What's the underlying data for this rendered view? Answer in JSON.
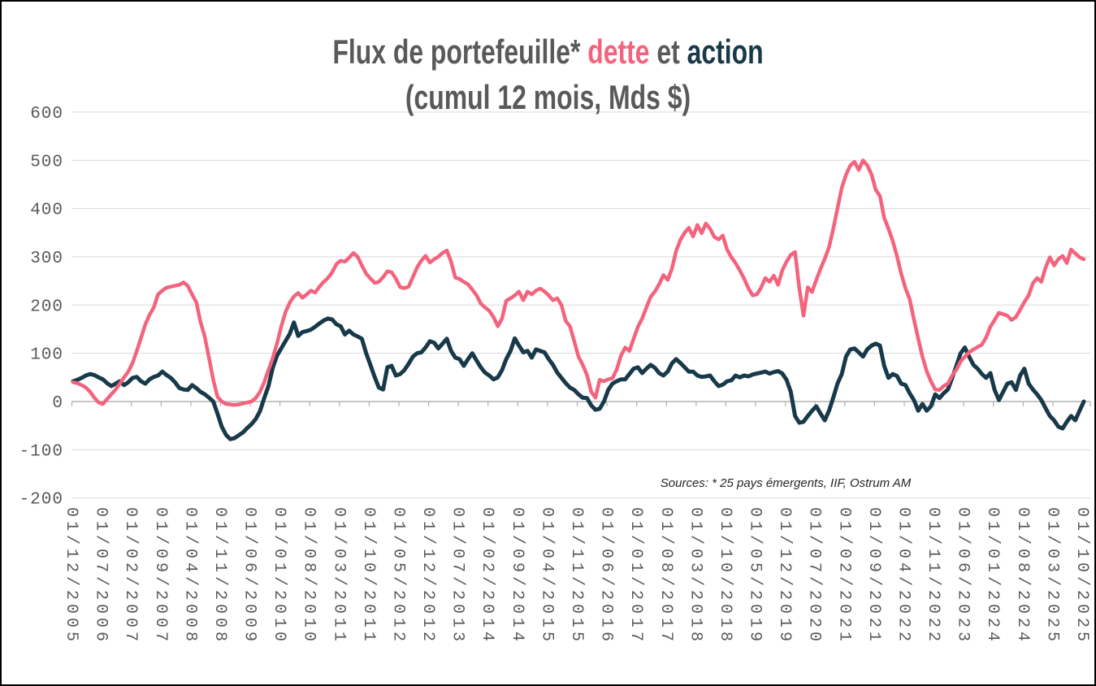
{
  "chart_data": {
    "type": "line",
    "title_segments": [
      {
        "text": "Flux de portefeuille* ",
        "color": "#595959"
      },
      {
        "text": "dette",
        "color": "#F4637D"
      },
      {
        "text": " et ",
        "color": "#595959"
      },
      {
        "text": "action",
        "color": "#17394A"
      }
    ],
    "subtitle": "(cumul 12 mois, Mds $)",
    "source_note": "Sources: * 25 pays émergents, IIF, Ostrum AM",
    "grid": true,
    "legend_position": "none",
    "ylim": [
      -200,
      600
    ],
    "y_ticks": [
      600,
      500,
      400,
      300,
      200,
      100,
      0,
      -100,
      -200
    ],
    "x_unit": "monthly from 01/12/2005 to 01/10/2025",
    "x_tick_interval_months": 7,
    "x_tick_labels": [
      "01/12/2005",
      "01/07/2006",
      "01/02/2007",
      "01/09/2007",
      "01/04/2008",
      "01/11/2008",
      "01/06/2009",
      "01/01/2010",
      "01/08/2010",
      "01/03/2011",
      "01/10/2011",
      "01/05/2012",
      "01/12/2012",
      "01/07/2013",
      "01/02/2014",
      "01/09/2014",
      "01/04/2015",
      "01/11/2015",
      "01/06/2016",
      "01/01/2017",
      "01/08/2017",
      "01/03/2018",
      "01/10/2018",
      "01/05/2019",
      "01/12/2019",
      "01/07/2020",
      "01/02/2021",
      "01/09/2021",
      "01/04/2022",
      "01/11/2022",
      "01/06/2023",
      "01/01/2024",
      "01/08/2024",
      "01/03/2025",
      "01/10/2025"
    ],
    "series": [
      {
        "name": "dette",
        "color": "#F4637D",
        "stroke_width": 4.5,
        "values": [
          40,
          38,
          34,
          29,
          20,
          8,
          -2,
          -5,
          5,
          15,
          25,
          37,
          50,
          62,
          80,
          105,
          132,
          160,
          180,
          195,
          222,
          230,
          236,
          238,
          240,
          242,
          247,
          240,
          222,
          206,
          165,
          135,
          90,
          45,
          10,
          0,
          -5,
          -6,
          -7,
          -6,
          -4,
          -2,
          0,
          7,
          20,
          40,
          65,
          90,
          120,
          155,
          185,
          205,
          218,
          225,
          215,
          222,
          230,
          226,
          238,
          248,
          256,
          268,
          285,
          292,
          290,
          298,
          308,
          300,
          282,
          265,
          255,
          246,
          248,
          258,
          270,
          268,
          255,
          237,
          235,
          238,
          258,
          278,
          292,
          302,
          288,
          295,
          300,
          308,
          313,
          290,
          257,
          254,
          248,
          243,
          232,
          220,
          203,
          195,
          188,
          175,
          156,
          172,
          209,
          214,
          220,
          228,
          210,
          228,
          222,
          230,
          234,
          228,
          220,
          210,
          214,
          200,
          167,
          156,
          125,
          93,
          76,
          55,
          20,
          8,
          45,
          42,
          46,
          48,
          66,
          95,
          112,
          105,
          130,
          155,
          172,
          195,
          217,
          228,
          243,
          262,
          252,
          275,
          312,
          335,
          350,
          360,
          342,
          366,
          349,
          369,
          358,
          341,
          336,
          344,
          315,
          299,
          287,
          272,
          255,
          235,
          220,
          222,
          236,
          256,
          248,
          261,
          242,
          272,
          290,
          304,
          310,
          235,
          178,
          237,
          227,
          252,
          275,
          296,
          320,
          358,
          400,
          443,
          470,
          489,
          497,
          480,
          500,
          490,
          471,
          439,
          426,
          381,
          358,
          333,
          302,
          265,
          235,
          212,
          170,
          130,
          93,
          63,
          42,
          25,
          24,
          32,
          37,
          54,
          66,
          83,
          93,
          102,
          108,
          113,
          118,
          133,
          155,
          169,
          184,
          181,
          178,
          169,
          175,
          190,
          206,
          220,
          245,
          256,
          248,
          278,
          299,
          282,
          295,
          302,
          287,
          315,
          307,
          299,
          295
        ]
      },
      {
        "name": "action",
        "color": "#17394A",
        "stroke_width": 5,
        "values": [
          42,
          45,
          49,
          54,
          57,
          55,
          50,
          46,
          38,
          32,
          37,
          42,
          34,
          40,
          49,
          51,
          42,
          37,
          46,
          51,
          54,
          62,
          55,
          49,
          40,
          28,
          25,
          24,
          34,
          28,
          20,
          15,
          8,
          0,
          -25,
          -52,
          -69,
          -78,
          -76,
          -70,
          -64,
          -55,
          -47,
          -36,
          -20,
          7,
          32,
          70,
          95,
          110,
          125,
          140,
          164,
          136,
          144,
          146,
          149,
          155,
          162,
          168,
          172,
          170,
          160,
          156,
          139,
          147,
          139,
          135,
          130,
          100,
          76,
          51,
          29,
          25,
          71,
          74,
          54,
          57,
          65,
          78,
          93,
          100,
          102,
          112,
          125,
          122,
          110,
          120,
          130,
          105,
          91,
          88,
          74,
          88,
          100,
          85,
          71,
          60,
          54,
          46,
          50,
          65,
          88,
          105,
          131,
          116,
          102,
          105,
          91,
          108,
          105,
          102,
          88,
          76,
          60,
          49,
          38,
          29,
          24,
          15,
          8,
          7,
          -8,
          -17,
          -15,
          0,
          24,
          37,
          42,
          46,
          46,
          57,
          68,
          71,
          59,
          68,
          76,
          70,
          59,
          54,
          62,
          79,
          88,
          80,
          71,
          62,
          62,
          54,
          51,
          52,
          54,
          42,
          32,
          35,
          42,
          44,
          54,
          50,
          54,
          52,
          56,
          58,
          60,
          62,
          58,
          61,
          63,
          58,
          45,
          20,
          -30,
          -44,
          -42,
          -30,
          -19,
          -10,
          -25,
          -39,
          -19,
          8,
          37,
          57,
          93,
          108,
          110,
          102,
          93,
          108,
          116,
          120,
          116,
          74,
          49,
          57,
          53,
          37,
          34,
          17,
          3,
          -19,
          -5,
          -19,
          -10,
          15,
          7,
          17,
          25,
          49,
          74,
          100,
          112,
          93,
          76,
          68,
          57,
          49,
          59,
          24,
          3,
          20,
          37,
          40,
          24,
          54,
          68,
          37,
          25,
          15,
          3,
          -14,
          -30,
          -39,
          -52,
          -56,
          -42,
          -30,
          -39,
          -19,
          0
        ]
      }
    ],
    "axis_colors": {
      "gridline": "#D9D9D9",
      "zero_axis": "#B3B3B3",
      "tick": "#B3B3B3",
      "label": "#595959"
    }
  }
}
